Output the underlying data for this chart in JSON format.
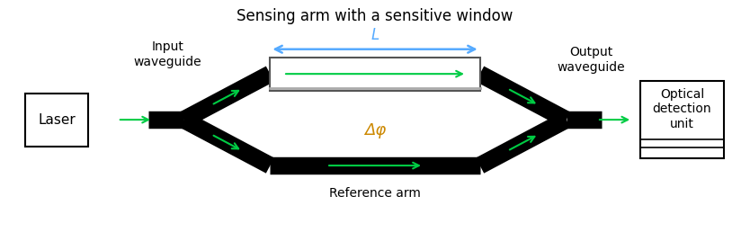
{
  "fig_width": 8.34,
  "fig_height": 2.78,
  "dpi": 100,
  "bg_color": "#ffffff",
  "title_text": "Sensing arm with a sensitive window",
  "title_fontsize": 12,
  "title_color": "#000000",
  "mzi_color": "#000000",
  "arrow_color": "#00cc44",
  "L_arrow_color": "#55aaff",
  "delta_phi_text": "Δφ",
  "delta_phi_color": "#cc8800",
  "L_label": "L",
  "L_label_color": "#55aaff",
  "input_label": "Input\nwaveguide",
  "output_label": "Output\nwaveguide",
  "laser_label": "Laser",
  "detection_label": "Optical\ndetection\nunit",
  "ref_arm_label": "Reference arm",
  "label_color": "#000000",
  "label_fontsize": 10,
  "lw_thick": 14,
  "arm_lw": 13
}
